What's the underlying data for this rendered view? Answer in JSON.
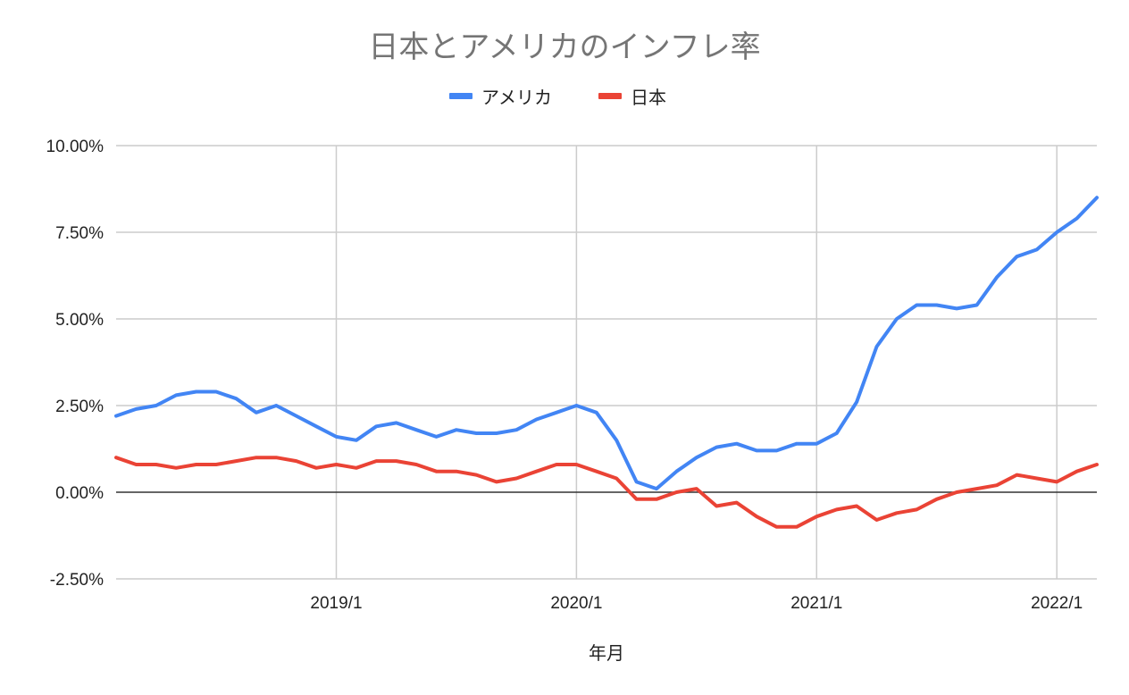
{
  "chart_data": {
    "type": "line",
    "title": "日本とアメリカのインフレ率",
    "xlabel": "年月",
    "ylabel": "",
    "ylim": [
      -2.5,
      10.0
    ],
    "yticks": [
      -2.5,
      0.0,
      2.5,
      5.0,
      7.5,
      10.0
    ],
    "ytick_labels": [
      "-2.50%",
      "0.00%",
      "2.50%",
      "5.00%",
      "7.50%",
      "10.00%"
    ],
    "xlim": [
      "2018/2",
      "2022/3"
    ],
    "xticks": [
      "2019/1",
      "2020/1",
      "2021/1",
      "2022/1"
    ],
    "x": [
      "2018/2",
      "2018/3",
      "2018/4",
      "2018/5",
      "2018/6",
      "2018/7",
      "2018/8",
      "2018/9",
      "2018/10",
      "2018/11",
      "2018/12",
      "2019/1",
      "2019/2",
      "2019/3",
      "2019/4",
      "2019/5",
      "2019/6",
      "2019/7",
      "2019/8",
      "2019/9",
      "2019/10",
      "2019/11",
      "2019/12",
      "2020/1",
      "2020/2",
      "2020/3",
      "2020/4",
      "2020/5",
      "2020/6",
      "2020/7",
      "2020/8",
      "2020/9",
      "2020/10",
      "2020/11",
      "2020/12",
      "2021/1",
      "2021/2",
      "2021/3",
      "2021/4",
      "2021/5",
      "2021/6",
      "2021/7",
      "2021/8",
      "2021/9",
      "2021/10",
      "2021/11",
      "2021/12",
      "2022/1",
      "2022/2",
      "2022/3"
    ],
    "grid": true,
    "legend_position": "top",
    "series": [
      {
        "name": "アメリカ",
        "color": "#4285f4",
        "values": [
          2.2,
          2.4,
          2.5,
          2.8,
          2.9,
          2.9,
          2.7,
          2.3,
          2.5,
          2.2,
          1.9,
          1.6,
          1.5,
          1.9,
          2.0,
          1.8,
          1.6,
          1.8,
          1.7,
          1.7,
          1.8,
          2.1,
          2.3,
          2.5,
          2.3,
          1.5,
          0.3,
          0.1,
          0.6,
          1.0,
          1.3,
          1.4,
          1.2,
          1.2,
          1.4,
          1.4,
          1.7,
          2.6,
          4.2,
          5.0,
          5.4,
          5.4,
          5.3,
          5.4,
          6.2,
          6.8,
          7.0,
          7.5,
          7.9,
          8.5
        ]
      },
      {
        "name": "日本",
        "color": "#ea4335",
        "values": [
          1.0,
          0.8,
          0.8,
          0.7,
          0.8,
          0.8,
          0.9,
          1.0,
          1.0,
          0.9,
          0.7,
          0.8,
          0.7,
          0.9,
          0.9,
          0.8,
          0.6,
          0.6,
          0.5,
          0.3,
          0.4,
          0.6,
          0.8,
          0.8,
          0.6,
          0.4,
          -0.2,
          -0.2,
          0.0,
          0.1,
          -0.4,
          -0.3,
          -0.7,
          -1.0,
          -1.0,
          -0.7,
          -0.5,
          -0.4,
          -0.8,
          -0.6,
          -0.5,
          -0.2,
          0.0,
          0.1,
          0.2,
          0.5,
          0.4,
          0.3,
          0.6,
          0.8
        ]
      }
    ]
  }
}
